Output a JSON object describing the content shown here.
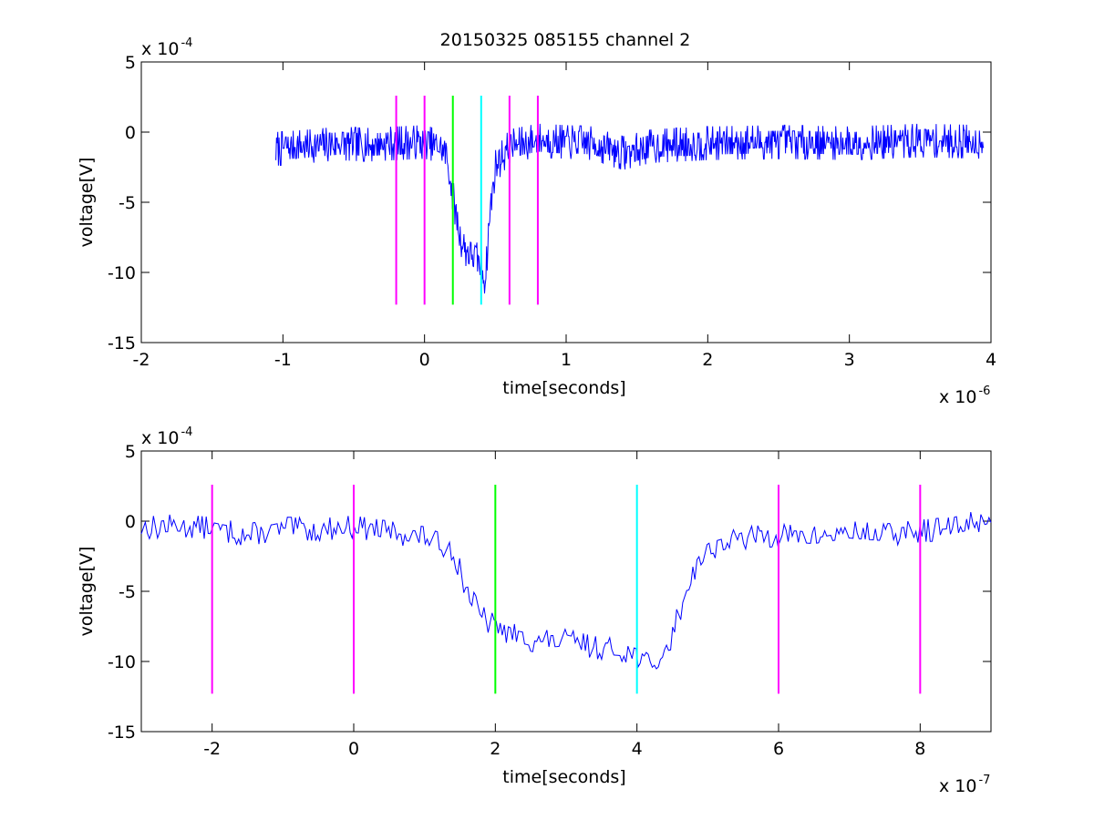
{
  "figure": {
    "title": "20150325 085155 channel 2"
  },
  "colors": {
    "signal": "#0000ff",
    "marker_magenta": "#ff00ff",
    "marker_green": "#00ff00",
    "marker_cyan": "#00ffff",
    "axes": "#000000"
  },
  "chart_data": [
    {
      "type": "line",
      "title": "20150325 085155 channel 2",
      "xlabel": "time[seconds]",
      "ylabel": "voltage[V]",
      "x_exponent": {
        "base": "x 10",
        "power": "-6"
      },
      "y_exponent": {
        "base": "x 10",
        "power": "-4"
      },
      "xlim": [
        -2,
        4
      ],
      "ylim": [
        -15,
        5
      ],
      "x_ticks": [
        -2,
        -1,
        0,
        1,
        2,
        3,
        4
      ],
      "x_tick_labels": [
        "-2",
        "-1",
        "0",
        "1",
        "2",
        "3",
        "4"
      ],
      "y_ticks": [
        -15,
        -10,
        -5,
        0,
        5
      ],
      "y_tick_labels": [
        "-15",
        "-10",
        "-5",
        "0",
        "5"
      ],
      "grid": false,
      "series": [
        {
          "color": "#0000ff",
          "x": [
            -1.05,
            -0.8,
            -0.6,
            -0.4,
            -0.2,
            0.0,
            0.1,
            0.15,
            0.2,
            0.25,
            0.3,
            0.35,
            0.4,
            0.43,
            0.46,
            0.5,
            0.6,
            0.8,
            1.0,
            1.2,
            1.3,
            1.4,
            1.6,
            2.0,
            2.5,
            3.0,
            3.5,
            3.95
          ],
          "y": [
            -1.2,
            -1.0,
            -0.8,
            -0.9,
            -0.8,
            -0.7,
            -1.0,
            -1.5,
            -4.5,
            -7.5,
            -8.5,
            -8.8,
            -9.5,
            -10.5,
            -6.0,
            -2.5,
            -1.0,
            -0.6,
            -0.7,
            -0.8,
            -1.2,
            -1.5,
            -1.0,
            -0.8,
            -0.7,
            -0.8,
            -0.6,
            -0.7
          ],
          "noise_amplitude": 1.2
        }
      ],
      "markers": [
        {
          "x": -0.2,
          "color": "#ff00ff"
        },
        {
          "x": 0.0,
          "color": "#ff00ff"
        },
        {
          "x": 0.2,
          "color": "#00ff00"
        },
        {
          "x": 0.4,
          "color": "#00ffff"
        },
        {
          "x": 0.6,
          "color": "#ff00ff"
        },
        {
          "x": 0.8,
          "color": "#ff00ff"
        }
      ],
      "marker_y_range": [
        -12.3,
        2.6
      ]
    },
    {
      "type": "line",
      "title": "",
      "xlabel": "time[seconds]",
      "ylabel": "voltage[V]",
      "x_exponent": {
        "base": "x 10",
        "power": "-7"
      },
      "y_exponent": {
        "base": "x 10",
        "power": "-4"
      },
      "xlim": [
        -3,
        9
      ],
      "ylim": [
        -15,
        5
      ],
      "x_ticks": [
        -2,
        0,
        2,
        4,
        6,
        8
      ],
      "x_tick_labels": [
        "-2",
        "0",
        "2",
        "4",
        "6",
        "8"
      ],
      "y_ticks": [
        -15,
        -10,
        -5,
        0,
        5
      ],
      "y_tick_labels": [
        "-15",
        "-10",
        "-5",
        "0",
        "5"
      ],
      "grid": false,
      "series": [
        {
          "color": "#0000ff",
          "x": [
            -3.0,
            -2.5,
            -2.0,
            -1.5,
            -1.0,
            -0.5,
            0.0,
            0.5,
            1.0,
            1.4,
            1.6,
            1.8,
            2.0,
            2.3,
            2.6,
            3.0,
            3.4,
            3.8,
            4.0,
            4.2,
            4.4,
            4.6,
            4.8,
            5.0,
            5.5,
            6.0,
            6.5,
            7.0,
            7.5,
            8.0,
            8.5,
            9.0
          ],
          "y": [
            -0.5,
            -0.3,
            -0.5,
            -1.0,
            -0.5,
            -0.6,
            -0.4,
            -0.8,
            -1.2,
            -2.0,
            -5.0,
            -6.8,
            -7.5,
            -8.2,
            -8.6,
            -8.5,
            -9.0,
            -9.2,
            -9.5,
            -10.5,
            -9.5,
            -6.5,
            -3.5,
            -2.0,
            -1.2,
            -1.0,
            -1.2,
            -0.8,
            -1.0,
            -0.7,
            -0.5,
            0.3
          ],
          "noise_amplitude": 0.8
        }
      ],
      "markers": [
        {
          "x": -2,
          "color": "#ff00ff"
        },
        {
          "x": 0,
          "color": "#ff00ff"
        },
        {
          "x": 2,
          "color": "#00ff00"
        },
        {
          "x": 4,
          "color": "#00ffff"
        },
        {
          "x": 6,
          "color": "#ff00ff"
        },
        {
          "x": 8,
          "color": "#ff00ff"
        }
      ],
      "marker_y_range": [
        -12.3,
        2.6
      ]
    }
  ]
}
